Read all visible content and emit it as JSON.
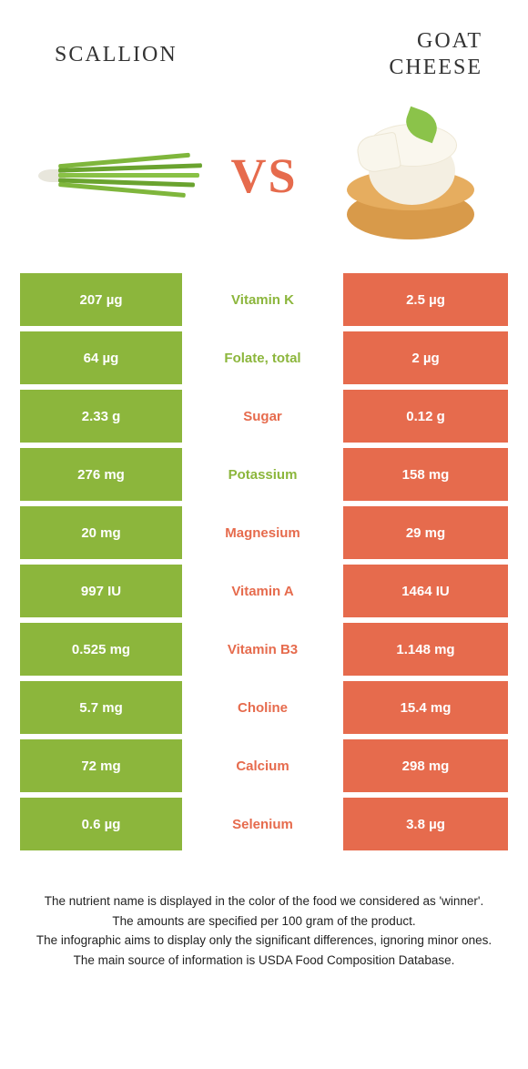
{
  "colors": {
    "scallion": "#8CB63C",
    "cheese": "#E66B4D",
    "white": "#FFFFFF"
  },
  "header": {
    "left_title": "SCALLION",
    "right_title": "GOAT\nCHEESE",
    "vs": "VS"
  },
  "rows": [
    {
      "left": "207 µg",
      "label": "Vitamin K",
      "right": "2.5 µg",
      "winner": "left"
    },
    {
      "left": "64 µg",
      "label": "Folate, total",
      "right": "2 µg",
      "winner": "left"
    },
    {
      "left": "2.33 g",
      "label": "Sugar",
      "right": "0.12 g",
      "winner": "right"
    },
    {
      "left": "276 mg",
      "label": "Potassium",
      "right": "158 mg",
      "winner": "left"
    },
    {
      "left": "20 mg",
      "label": "Magnesium",
      "right": "29 mg",
      "winner": "right"
    },
    {
      "left": "997 IU",
      "label": "Vitamin A",
      "right": "1464 IU",
      "winner": "right"
    },
    {
      "left": "0.525 mg",
      "label": "Vitamin B3",
      "right": "1.148 mg",
      "winner": "right"
    },
    {
      "left": "5.7 mg",
      "label": "Choline",
      "right": "15.4 mg",
      "winner": "right"
    },
    {
      "left": "72 mg",
      "label": "Calcium",
      "right": "298 mg",
      "winner": "right"
    },
    {
      "left": "0.6 µg",
      "label": "Selenium",
      "right": "3.8 µg",
      "winner": "right"
    }
  ],
  "footer": {
    "l1": "The nutrient name is displayed in the color of the food we considered as 'winner'.",
    "l2": "The amounts are specified per 100 gram of the product.",
    "l3": "The infographic aims to display only the significant differences, ignoring minor ones.",
    "l4": "The main source of information is USDA Food Composition Database."
  }
}
